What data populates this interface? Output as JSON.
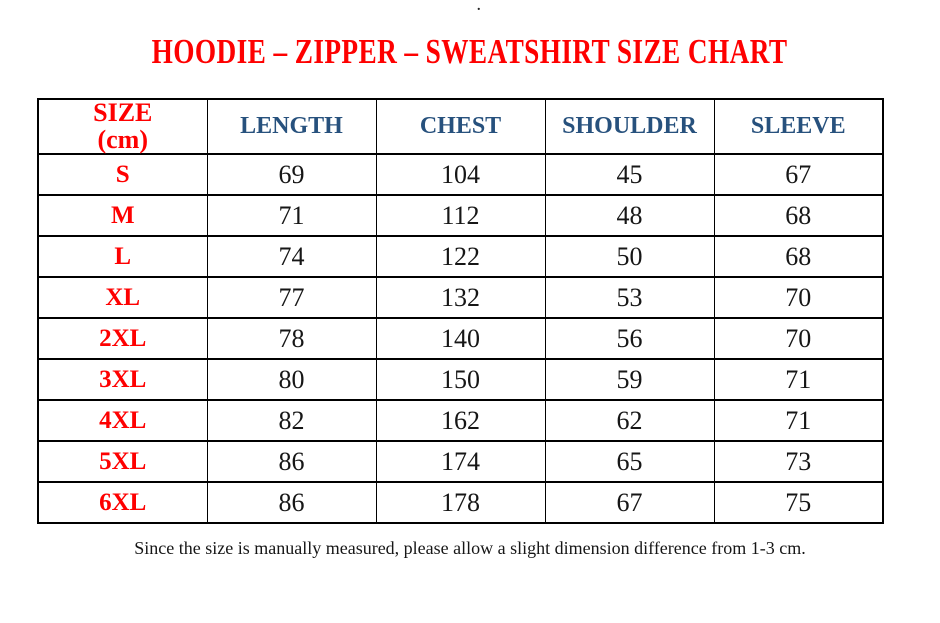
{
  "page": {
    "top_dot": ".",
    "title": "HOODIE – ZIPPER – SWEATSHIRT SIZE CHART",
    "footer_note": "Since the size is manually measured, please allow a slight dimension difference from 1-3 cm."
  },
  "colors": {
    "title_red": "#fe0000",
    "header_blue": "#27517d",
    "body_text": "#161616",
    "border": "#000000"
  },
  "table": {
    "size_header": {
      "line1": "SIZE",
      "line2": "(cm)"
    },
    "measure_headers": [
      "LENGTH",
      "CHEST",
      "SHOULDER",
      "SLEEVE"
    ],
    "rows": [
      {
        "size": "S",
        "values": [
          69,
          104,
          45,
          67
        ]
      },
      {
        "size": "M",
        "values": [
          71,
          112,
          48,
          68
        ]
      },
      {
        "size": "L",
        "values": [
          74,
          122,
          50,
          68
        ]
      },
      {
        "size": "XL",
        "values": [
          77,
          132,
          53,
          70
        ]
      },
      {
        "size": "2XL",
        "values": [
          78,
          140,
          56,
          70
        ]
      },
      {
        "size": "3XL",
        "values": [
          80,
          150,
          59,
          71
        ]
      },
      {
        "size": "4XL",
        "values": [
          82,
          162,
          62,
          71
        ]
      },
      {
        "size": "5XL",
        "values": [
          86,
          174,
          65,
          73
        ]
      },
      {
        "size": "6XL",
        "values": [
          86,
          178,
          67,
          75
        ]
      }
    ]
  }
}
